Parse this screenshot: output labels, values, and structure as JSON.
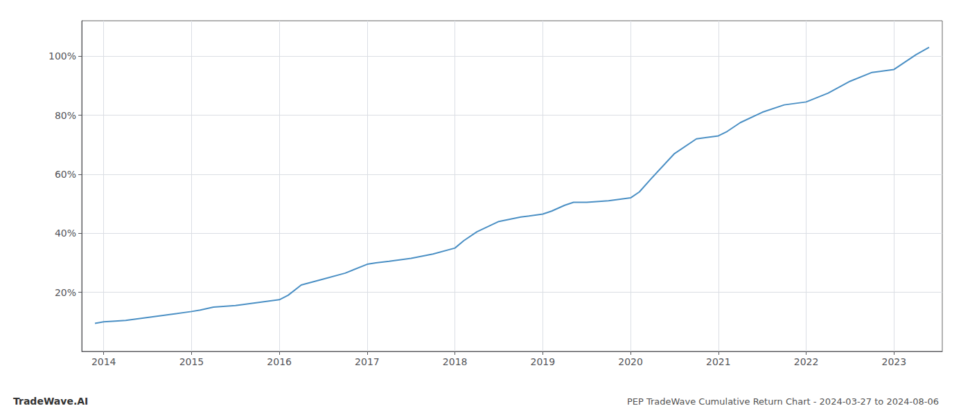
{
  "chart_data": {
    "type": "line",
    "title": "PEP TradeWave Cumulative Return Chart - 2024-03-27 to 2024-08-06",
    "annotations": [
      "TradeWave.AI"
    ],
    "color": "#4a8fc4",
    "x": [
      2013.9,
      2014.0,
      2014.1,
      2014.25,
      2014.5,
      2014.75,
      2015.0,
      2015.1,
      2015.25,
      2015.5,
      2015.75,
      2016.0,
      2016.1,
      2016.25,
      2016.5,
      2016.75,
      2017.0,
      2017.1,
      2017.25,
      2017.5,
      2017.75,
      2018.0,
      2018.1,
      2018.25,
      2018.5,
      2018.75,
      2019.0,
      2019.1,
      2019.25,
      2019.35,
      2019.5,
      2019.75,
      2020.0,
      2020.1,
      2020.25,
      2020.5,
      2020.75,
      2021.0,
      2021.1,
      2021.25,
      2021.5,
      2021.75,
      2022.0,
      2022.25,
      2022.5,
      2022.75,
      2023.0,
      2023.25,
      2023.4
    ],
    "values": [
      9.5,
      10.0,
      10.2,
      10.5,
      11.5,
      12.5,
      13.5,
      14.0,
      15.0,
      15.5,
      16.5,
      17.5,
      19.0,
      22.5,
      24.5,
      26.5,
      29.5,
      30.0,
      30.5,
      31.5,
      33.0,
      35.0,
      37.5,
      40.5,
      44.0,
      45.5,
      46.5,
      47.5,
      49.5,
      50.5,
      50.5,
      51.0,
      52.0,
      54.0,
      59.0,
      67.0,
      72.0,
      73.0,
      74.5,
      77.5,
      81.0,
      83.5,
      84.5,
      87.5,
      91.5,
      94.5,
      95.5,
      100.5,
      103.0
    ],
    "xlim": [
      2013.75,
      2023.55
    ],
    "xticks": [
      2014,
      2015,
      2016,
      2017,
      2018,
      2019,
      2020,
      2021,
      2022,
      2023
    ],
    "ylim": [
      0,
      112
    ],
    "yticks": [
      {
        "value": 20,
        "label": "20%"
      },
      {
        "value": 40,
        "label": "40%"
      },
      {
        "value": 60,
        "label": "60%"
      },
      {
        "value": 80,
        "label": "80%"
      },
      {
        "value": 100,
        "label": "100%"
      }
    ],
    "grid": true
  }
}
